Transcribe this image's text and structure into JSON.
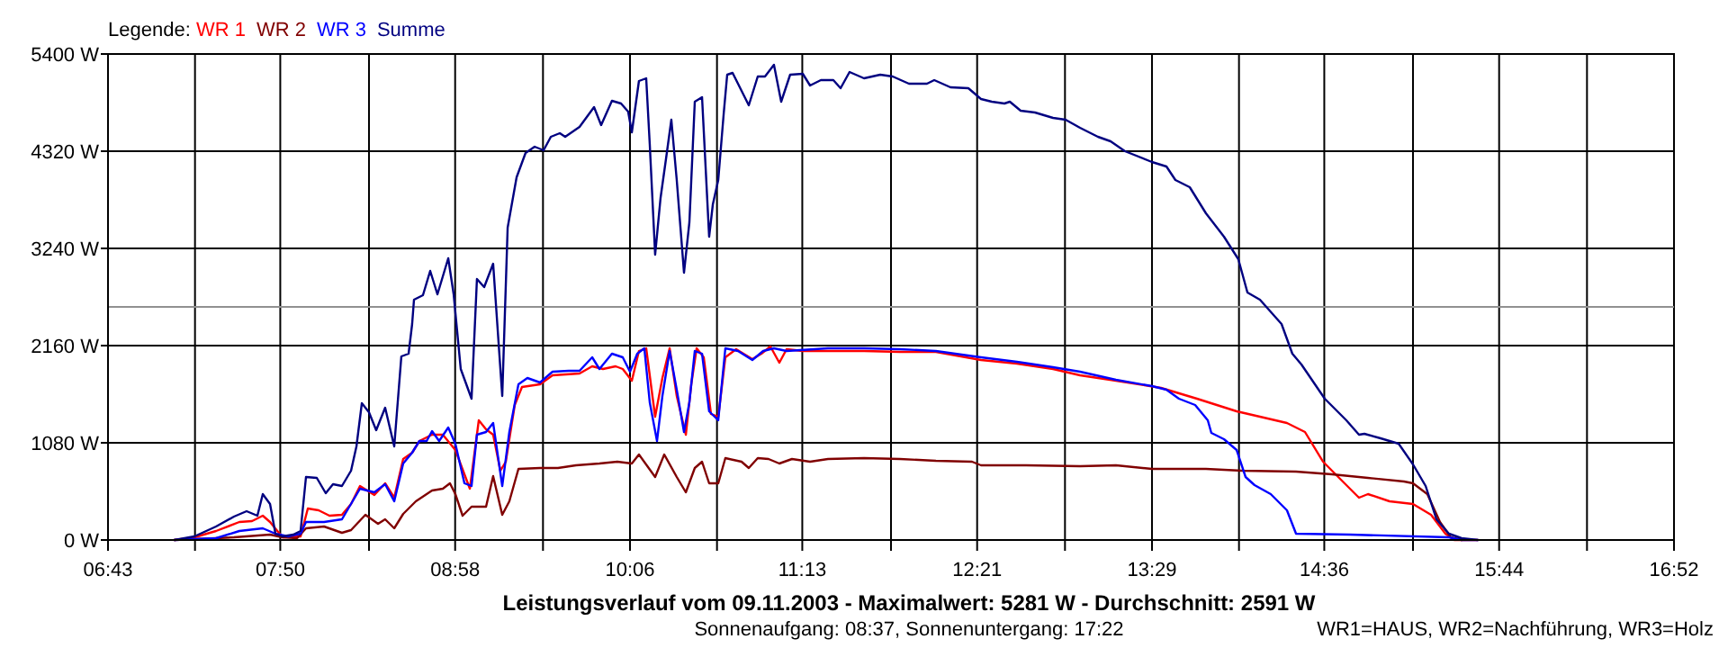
{
  "chart_data": {
    "type": "line",
    "title": "Leistungsverlauf vom 09.11.2003 - Maximalwert: 5281 W - Durchschnitt: 2591 W",
    "subtitle": "Sonnenaufgang: 08:37, Sonnenuntergang: 17:22",
    "annotations": [
      "WR1=HAUS, WR2=Nachführung, WR3=Holz"
    ],
    "legend_title": "Legende:",
    "legend": "top left",
    "grid": true,
    "line_style": "solid",
    "xlim": [
      6.7167,
      16.8667
    ],
    "xticks": [
      {
        "value": 6.7167,
        "label": "06:43"
      },
      {
        "value": 7.2806,
        "label": null
      },
      {
        "value": 7.8333,
        "label": "07:50"
      },
      {
        "value": 8.4083,
        "label": null
      },
      {
        "value": 8.9667,
        "label": "08:58"
      },
      {
        "value": 9.5361,
        "label": null
      },
      {
        "value": 10.1,
        "label": "10:06"
      },
      {
        "value": 10.6639,
        "label": null
      },
      {
        "value": 11.2167,
        "label": "11:13"
      },
      {
        "value": 11.7917,
        "label": null
      },
      {
        "value": 12.35,
        "label": "12:21"
      },
      {
        "value": 12.9194,
        "label": null
      },
      {
        "value": 13.4833,
        "label": "13:29"
      },
      {
        "value": 14.0472,
        "label": null
      },
      {
        "value": 14.6,
        "label": "14:36"
      },
      {
        "value": 15.175,
        "label": null
      },
      {
        "value": 15.7333,
        "label": "15:44"
      },
      {
        "value": 16.3028,
        "label": null
      },
      {
        "value": 16.8667,
        "label": "16:52"
      }
    ],
    "ylim": [
      0,
      5400
    ],
    "yticks": [
      {
        "value": 0,
        "label": "0 W"
      },
      {
        "value": 1080,
        "label": "1080 W"
      },
      {
        "value": 2160,
        "label": "2160 W"
      },
      {
        "value": 3240,
        "label": "3240 W"
      },
      {
        "value": 4320,
        "label": "4320 W"
      },
      {
        "value": 5400,
        "label": "5400 W"
      }
    ],
    "ref_lines": [
      {
        "axis": "y",
        "value": 2591,
        "label": null,
        "color": "#909090"
      }
    ],
    "series": [
      {
        "name": "WR 1",
        "color": "#ff0000",
        "x": [
          7.148,
          7.277,
          7.417,
          7.568,
          7.65,
          7.72,
          7.767,
          7.848,
          7.965,
          8.012,
          8.082,
          8.152,
          8.233,
          8.292,
          8.35,
          8.443,
          8.513,
          8.572,
          8.63,
          8.688,
          8.735,
          8.817,
          8.887,
          8.968,
          9.027,
          9.062,
          9.12,
          9.167,
          9.213,
          9.26,
          9.295,
          9.353,
          9.4,
          9.517,
          9.598,
          9.773,
          9.855,
          9.925,
          10.007,
          10.053,
          10.112,
          10.158,
          10.205,
          10.263,
          10.31,
          10.357,
          10.403,
          10.462,
          10.497,
          10.532,
          10.578,
          10.625,
          10.672,
          10.718,
          10.788,
          10.893,
          10.952,
          11.01,
          11.068,
          11.115,
          11.22,
          11.383,
          11.617,
          11.85,
          12.083,
          12.375,
          12.608,
          12.842,
          13.017,
          13.25,
          13.542,
          13.775,
          14.032,
          14.183,
          14.358,
          14.475,
          14.592,
          14.708,
          14.825,
          14.883,
          15.023,
          15.175,
          15.292,
          15.385,
          15.443,
          15.595
        ],
        "values": [
          0,
          30,
          100,
          200,
          210,
          270,
          200,
          30,
          40,
          350,
          330,
          270,
          280,
          400,
          600,
          500,
          630,
          470,
          900,
          970,
          1100,
          1170,
          1170,
          1000,
          730,
          570,
          1330,
          1230,
          1170,
          770,
          870,
          1500,
          1700,
          1730,
          1830,
          1850,
          1930,
          1900,
          1930,
          1900,
          1770,
          2100,
          2130,
          1370,
          1800,
          2130,
          1600,
          1170,
          1730,
          2130,
          2030,
          1400,
          1370,
          2030,
          2120,
          2010,
          2070,
          2150,
          1970,
          2120,
          2100,
          2100,
          2100,
          2090,
          2090,
          2000,
          1960,
          1900,
          1830,
          1770,
          1690,
          1570,
          1430,
          1370,
          1300,
          1200,
          870,
          670,
          470,
          510,
          430,
          400,
          280,
          70,
          0,
          0
        ]
      },
      {
        "name": "WR 2",
        "color": "#800000",
        "x": [
          7.148,
          7.533,
          7.767,
          7.848,
          7.942,
          8.0,
          8.117,
          8.233,
          8.292,
          8.385,
          8.467,
          8.513,
          8.572,
          8.63,
          8.712,
          8.817,
          8.887,
          8.933,
          8.968,
          9.015,
          9.073,
          9.167,
          9.213,
          9.272,
          9.318,
          9.377,
          9.517,
          9.633,
          9.75,
          9.902,
          10.018,
          10.112,
          10.158,
          10.263,
          10.322,
          10.403,
          10.462,
          10.52,
          10.567,
          10.613,
          10.672,
          10.718,
          10.823,
          10.87,
          10.928,
          10.998,
          11.068,
          11.15,
          11.267,
          11.383,
          11.617,
          11.85,
          12.083,
          12.317,
          12.375,
          12.667,
          13.017,
          13.25,
          13.483,
          13.833,
          14.067,
          14.417,
          14.65,
          14.883,
          15.117,
          15.175,
          15.268,
          15.35,
          15.42,
          15.49
        ],
        "values": [
          0,
          30,
          60,
          30,
          20,
          130,
          150,
          80,
          110,
          280,
          180,
          230,
          130,
          290,
          430,
          550,
          570,
          630,
          510,
          270,
          370,
          370,
          710,
          280,
          430,
          790,
          800,
          800,
          830,
          850,
          870,
          850,
          950,
          700,
          950,
          700,
          530,
          800,
          870,
          630,
          630,
          910,
          870,
          800,
          910,
          900,
          850,
          900,
          870,
          900,
          910,
          900,
          880,
          870,
          830,
          830,
          820,
          830,
          790,
          790,
          770,
          760,
          730,
          690,
          650,
          630,
          510,
          200,
          30,
          0
        ]
      },
      {
        "name": "WR 3",
        "color": "#0000ff",
        "x": [
          7.148,
          7.417,
          7.568,
          7.72,
          7.802,
          7.883,
          7.965,
          8.0,
          8.117,
          8.233,
          8.35,
          8.443,
          8.513,
          8.572,
          8.63,
          8.688,
          8.735,
          8.782,
          8.817,
          8.863,
          8.922,
          8.968,
          9.027,
          9.073,
          9.108,
          9.167,
          9.213,
          9.272,
          9.318,
          9.377,
          9.435,
          9.517,
          9.598,
          9.703,
          9.773,
          9.855,
          9.902,
          9.983,
          10.053,
          10.1,
          10.147,
          10.193,
          10.228,
          10.275,
          10.31,
          10.357,
          10.403,
          10.45,
          10.485,
          10.52,
          10.567,
          10.613,
          10.672,
          10.718,
          10.8,
          10.893,
          10.963,
          11.033,
          11.115,
          11.383,
          11.617,
          11.85,
          12.083,
          12.375,
          12.608,
          12.842,
          13.017,
          13.25,
          13.483,
          13.577,
          13.658,
          13.763,
          13.845,
          13.868,
          13.95,
          14.032,
          14.09,
          14.148,
          14.253,
          14.358,
          14.417,
          14.767,
          15.408,
          15.49,
          15.595
        ],
        "values": [
          0,
          20,
          100,
          130,
          70,
          40,
          70,
          200,
          200,
          230,
          570,
          530,
          620,
          430,
          850,
          970,
          1100,
          1100,
          1210,
          1100,
          1250,
          1070,
          630,
          600,
          1170,
          1200,
          1300,
          600,
          1200,
          1730,
          1800,
          1750,
          1870,
          1880,
          1880,
          2030,
          1900,
          2070,
          2030,
          1870,
          2070,
          2130,
          1530,
          1100,
          1600,
          2100,
          1670,
          1200,
          1530,
          2100,
          2070,
          1430,
          1330,
          2130,
          2100,
          2000,
          2100,
          2130,
          2100,
          2130,
          2130,
          2120,
          2100,
          2030,
          1980,
          1920,
          1870,
          1780,
          1710,
          1670,
          1570,
          1500,
          1330,
          1190,
          1120,
          1000,
          700,
          610,
          510,
          330,
          70,
          60,
          30,
          0,
          0
        ]
      },
      {
        "name": "Summe",
        "color": "#000080",
        "x": [
          7.148,
          7.277,
          7.417,
          7.533,
          7.615,
          7.685,
          7.72,
          7.767,
          7.802,
          7.848,
          7.918,
          7.965,
          8.0,
          8.07,
          8.128,
          8.175,
          8.233,
          8.292,
          8.327,
          8.362,
          8.408,
          8.455,
          8.513,
          8.572,
          8.618,
          8.665,
          8.688,
          8.7,
          8.758,
          8.805,
          8.852,
          8.922,
          8.957,
          9.003,
          9.073,
          9.108,
          9.155,
          9.213,
          9.272,
          9.307,
          9.365,
          9.423,
          9.482,
          9.54,
          9.587,
          9.645,
          9.68,
          9.773,
          9.867,
          9.913,
          9.983,
          10.042,
          10.088,
          10.112,
          10.158,
          10.205,
          10.228,
          10.263,
          10.298,
          10.333,
          10.368,
          10.403,
          10.45,
          10.485,
          10.52,
          10.567,
          10.613,
          10.637,
          10.672,
          10.707,
          10.73,
          10.765,
          10.87,
          10.928,
          10.975,
          11.033,
          11.08,
          11.138,
          11.22,
          11.267,
          11.337,
          11.418,
          11.465,
          11.523,
          11.617,
          11.722,
          11.803,
          11.908,
          12.025,
          12.072,
          12.177,
          12.293,
          12.375,
          12.445,
          12.527,
          12.562,
          12.632,
          12.725,
          12.842,
          12.923,
          13.017,
          13.133,
          13.215,
          13.308,
          13.483,
          13.577,
          13.635,
          13.728,
          13.833,
          13.95,
          14.043,
          14.102,
          14.183,
          14.323,
          14.393,
          14.452,
          14.603,
          14.743,
          14.825,
          14.86,
          14.965,
          15.082,
          15.175,
          15.257,
          15.327,
          15.408,
          15.49,
          15.595
        ],
        "values": [
          0,
          40,
          150,
          260,
          320,
          270,
          510,
          400,
          70,
          40,
          60,
          100,
          700,
          690,
          520,
          620,
          600,
          770,
          1040,
          1520,
          1420,
          1220,
          1470,
          1040,
          2040,
          2070,
          2400,
          2670,
          2720,
          2990,
          2730,
          3130,
          2730,
          1900,
          1570,
          2900,
          2810,
          3070,
          1600,
          3470,
          4030,
          4300,
          4370,
          4330,
          4480,
          4520,
          4480,
          4590,
          4810,
          4610,
          4880,
          4850,
          4760,
          4530,
          5100,
          5130,
          4400,
          3170,
          3800,
          4230,
          4670,
          4000,
          2970,
          3530,
          4870,
          4920,
          3370,
          3730,
          4000,
          4730,
          5170,
          5190,
          4830,
          5150,
          5150,
          5280,
          4870,
          5170,
          5180,
          5050,
          5110,
          5110,
          5020,
          5200,
          5130,
          5170,
          5150,
          5070,
          5070,
          5110,
          5030,
          5020,
          4900,
          4870,
          4850,
          4870,
          4770,
          4750,
          4690,
          4670,
          4580,
          4480,
          4430,
          4320,
          4200,
          4150,
          4000,
          3920,
          3630,
          3370,
          3120,
          2750,
          2670,
          2400,
          2070,
          1950,
          1570,
          1330,
          1170,
          1180,
          1130,
          1070,
          840,
          600,
          230,
          70,
          20,
          0
        ]
      }
    ]
  }
}
